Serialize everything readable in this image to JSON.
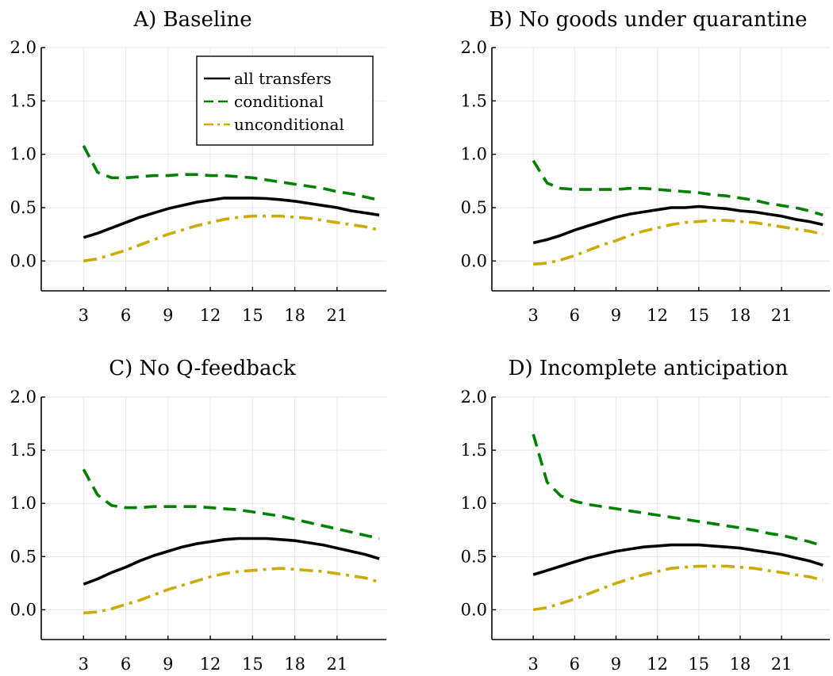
{
  "chart_data": [
    {
      "type": "line",
      "title": "A) Baseline",
      "xlim": [
        0,
        24.5
      ],
      "ylim": [
        -0.28,
        2.0
      ],
      "xticks": [
        3,
        6,
        9,
        12,
        15,
        18,
        21
      ],
      "yticks": [
        0.0,
        0.5,
        1.0,
        1.5,
        2.0
      ],
      "ytick_labels": [
        "0.0",
        "0.5",
        "1.0",
        "1.5",
        "2.0"
      ],
      "grid": true,
      "legend": "top-right",
      "series": [
        {
          "name": "all transfers",
          "color": "#000000",
          "dash": "solid",
          "x": [
            3,
            4,
            5,
            6,
            7,
            8,
            9,
            10,
            11,
            12,
            13,
            14,
            15,
            16,
            17,
            18,
            19,
            20,
            21,
            22,
            23,
            24
          ],
          "y": [
            0.22,
            0.26,
            0.31,
            0.36,
            0.41,
            0.45,
            0.49,
            0.52,
            0.55,
            0.57,
            0.59,
            0.59,
            0.59,
            0.585,
            0.575,
            0.56,
            0.54,
            0.52,
            0.5,
            0.47,
            0.45,
            0.43
          ]
        },
        {
          "name": "conditional",
          "color": "#008000",
          "dash": "dash",
          "x": [
            3,
            4,
            5,
            6,
            7,
            8,
            9,
            10,
            11,
            12,
            13,
            14,
            15,
            16,
            17,
            18,
            19,
            20,
            21,
            22,
            23,
            24
          ],
          "y": [
            1.08,
            0.83,
            0.78,
            0.78,
            0.79,
            0.8,
            0.8,
            0.81,
            0.81,
            0.8,
            0.8,
            0.79,
            0.78,
            0.76,
            0.74,
            0.72,
            0.7,
            0.68,
            0.65,
            0.63,
            0.6,
            0.57
          ]
        },
        {
          "name": "unconditional",
          "color": "#ccaa00",
          "dash": "dashdot",
          "x": [
            3,
            4,
            5,
            6,
            7,
            8,
            9,
            10,
            11,
            12,
            13,
            14,
            15,
            16,
            17,
            18,
            19,
            20,
            21,
            22,
            23,
            24
          ],
          "y": [
            0.0,
            0.02,
            0.06,
            0.1,
            0.15,
            0.2,
            0.25,
            0.29,
            0.33,
            0.36,
            0.39,
            0.41,
            0.42,
            0.42,
            0.42,
            0.41,
            0.4,
            0.38,
            0.36,
            0.34,
            0.32,
            0.29
          ]
        }
      ]
    },
    {
      "type": "line",
      "title": "B) No goods under quarantine",
      "xlim": [
        0,
        24.5
      ],
      "ylim": [
        -0.28,
        2.0
      ],
      "xticks": [
        3,
        6,
        9,
        12,
        15,
        18,
        21
      ],
      "yticks": [
        0.0,
        0.5,
        1.0,
        1.5,
        2.0
      ],
      "ytick_labels": [
        "0.0",
        "0.5",
        "1.0",
        "1.5",
        "2.0"
      ],
      "grid": true,
      "series": [
        {
          "color": "#000000",
          "dash": "solid",
          "x": [
            3,
            4,
            5,
            6,
            7,
            8,
            9,
            10,
            11,
            12,
            13,
            14,
            15,
            16,
            17,
            18,
            19,
            20,
            21,
            22,
            23,
            24
          ],
          "y": [
            0.17,
            0.2,
            0.24,
            0.29,
            0.33,
            0.37,
            0.41,
            0.44,
            0.46,
            0.48,
            0.5,
            0.5,
            0.51,
            0.5,
            0.49,
            0.47,
            0.46,
            0.44,
            0.42,
            0.39,
            0.37,
            0.34
          ]
        },
        {
          "color": "#008000",
          "dash": "dash",
          "x": [
            3,
            4,
            5,
            6,
            7,
            8,
            9,
            10,
            11,
            12,
            13,
            14,
            15,
            16,
            17,
            18,
            19,
            20,
            21,
            22,
            23,
            24
          ],
          "y": [
            0.94,
            0.73,
            0.68,
            0.67,
            0.67,
            0.67,
            0.67,
            0.68,
            0.68,
            0.67,
            0.66,
            0.65,
            0.64,
            0.62,
            0.61,
            0.59,
            0.57,
            0.54,
            0.52,
            0.5,
            0.47,
            0.43
          ]
        },
        {
          "color": "#ccaa00",
          "dash": "dashdot",
          "x": [
            3,
            4,
            5,
            6,
            7,
            8,
            9,
            10,
            11,
            12,
            13,
            14,
            15,
            16,
            17,
            18,
            19,
            20,
            21,
            22,
            23,
            24
          ],
          "y": [
            -0.03,
            -0.02,
            0.01,
            0.05,
            0.1,
            0.15,
            0.19,
            0.24,
            0.28,
            0.31,
            0.34,
            0.36,
            0.37,
            0.38,
            0.38,
            0.37,
            0.36,
            0.34,
            0.32,
            0.3,
            0.28,
            0.25
          ]
        }
      ]
    },
    {
      "type": "line",
      "title": "C) No Q-feedback",
      "xlim": [
        0,
        24.5
      ],
      "ylim": [
        -0.28,
        2.0
      ],
      "xticks": [
        3,
        6,
        9,
        12,
        15,
        18,
        21
      ],
      "yticks": [
        0.0,
        0.5,
        1.0,
        1.5,
        2.0
      ],
      "ytick_labels": [
        "0.0",
        "0.5",
        "1.0",
        "1.5",
        "2.0"
      ],
      "grid": true,
      "series": [
        {
          "color": "#000000",
          "dash": "solid",
          "x": [
            3,
            4,
            5,
            6,
            7,
            8,
            9,
            10,
            11,
            12,
            13,
            14,
            15,
            16,
            17,
            18,
            19,
            20,
            21,
            22,
            23,
            24
          ],
          "y": [
            0.24,
            0.29,
            0.35,
            0.4,
            0.46,
            0.51,
            0.55,
            0.59,
            0.62,
            0.64,
            0.66,
            0.67,
            0.67,
            0.67,
            0.66,
            0.65,
            0.63,
            0.61,
            0.58,
            0.55,
            0.52,
            0.48
          ]
        },
        {
          "color": "#008000",
          "dash": "dash",
          "x": [
            3,
            4,
            5,
            6,
            7,
            8,
            9,
            10,
            11,
            12,
            13,
            14,
            15,
            16,
            17,
            18,
            19,
            20,
            21,
            22,
            23,
            24
          ],
          "y": [
            1.32,
            1.08,
            0.98,
            0.96,
            0.96,
            0.97,
            0.97,
            0.97,
            0.97,
            0.96,
            0.95,
            0.94,
            0.92,
            0.9,
            0.88,
            0.85,
            0.82,
            0.79,
            0.76,
            0.73,
            0.7,
            0.67
          ]
        },
        {
          "color": "#ccaa00",
          "dash": "dashdot",
          "x": [
            3,
            4,
            5,
            6,
            7,
            8,
            9,
            10,
            11,
            12,
            13,
            14,
            15,
            16,
            17,
            18,
            19,
            20,
            21,
            22,
            23,
            24
          ],
          "y": [
            -0.03,
            -0.02,
            0.01,
            0.05,
            0.09,
            0.14,
            0.19,
            0.23,
            0.27,
            0.31,
            0.34,
            0.36,
            0.37,
            0.38,
            0.39,
            0.38,
            0.37,
            0.36,
            0.34,
            0.32,
            0.3,
            0.26
          ]
        }
      ]
    },
    {
      "type": "line",
      "title": "D) Incomplete anticipation",
      "xlim": [
        0,
        24.5
      ],
      "ylim": [
        -0.28,
        2.0
      ],
      "xticks": [
        3,
        6,
        9,
        12,
        15,
        18,
        21
      ],
      "yticks": [
        0.0,
        0.5,
        1.0,
        1.5,
        2.0
      ],
      "ytick_labels": [
        "0.0",
        "0.5",
        "1.0",
        "1.5",
        "2.0"
      ],
      "grid": true,
      "series": [
        {
          "color": "#000000",
          "dash": "solid",
          "x": [
            3,
            4,
            5,
            6,
            7,
            8,
            9,
            10,
            11,
            12,
            13,
            14,
            15,
            16,
            17,
            18,
            19,
            20,
            21,
            22,
            23,
            24
          ],
          "y": [
            0.33,
            0.37,
            0.41,
            0.45,
            0.49,
            0.52,
            0.55,
            0.57,
            0.59,
            0.6,
            0.61,
            0.61,
            0.61,
            0.6,
            0.59,
            0.58,
            0.56,
            0.54,
            0.52,
            0.49,
            0.46,
            0.42
          ]
        },
        {
          "color": "#008000",
          "dash": "dash",
          "x": [
            3,
            4,
            5,
            6,
            7,
            8,
            9,
            10,
            11,
            12,
            13,
            14,
            15,
            16,
            17,
            18,
            19,
            20,
            21,
            22,
            23,
            24
          ],
          "y": [
            1.65,
            1.2,
            1.07,
            1.02,
            0.99,
            0.97,
            0.95,
            0.93,
            0.91,
            0.89,
            0.87,
            0.85,
            0.83,
            0.81,
            0.79,
            0.77,
            0.75,
            0.72,
            0.7,
            0.67,
            0.64,
            0.6
          ]
        },
        {
          "color": "#ccaa00",
          "dash": "dashdot",
          "x": [
            3,
            4,
            5,
            6,
            7,
            8,
            9,
            10,
            11,
            12,
            13,
            14,
            15,
            16,
            17,
            18,
            19,
            20,
            21,
            22,
            23,
            24
          ],
          "y": [
            0.0,
            0.02,
            0.06,
            0.1,
            0.15,
            0.2,
            0.25,
            0.29,
            0.33,
            0.36,
            0.39,
            0.4,
            0.41,
            0.41,
            0.41,
            0.4,
            0.39,
            0.37,
            0.35,
            0.33,
            0.31,
            0.28
          ]
        }
      ]
    }
  ]
}
